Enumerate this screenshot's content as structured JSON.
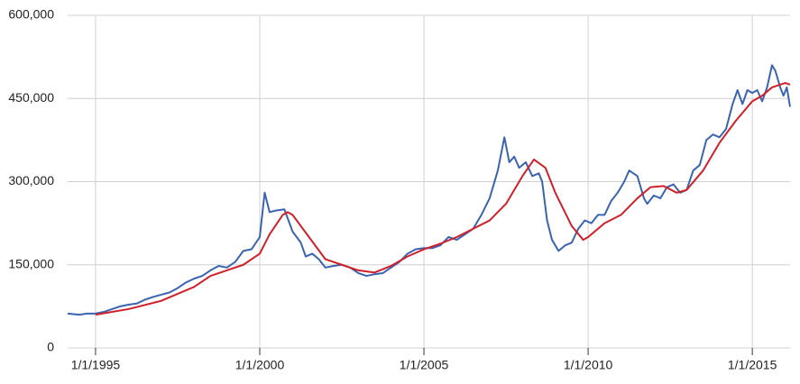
{
  "chart_data": {
    "type": "line",
    "xlim": [
      1994.15,
      2016.15
    ],
    "ylim": [
      0,
      600000
    ],
    "xticks": [
      {
        "value": 1995,
        "label": "1/1/1995"
      },
      {
        "value": 2000,
        "label": "1/1/2000"
      },
      {
        "value": 2005,
        "label": "1/1/2005"
      },
      {
        "value": 2010,
        "label": "1/1/2010"
      },
      {
        "value": 2015,
        "label": "1/1/2015"
      }
    ],
    "yticks": [
      0,
      {
        "value": 150000,
        "label": "150,000"
      },
      {
        "value": 300000,
        "label": "300,000"
      },
      {
        "value": 450000,
        "label": "450,000"
      },
      {
        "value": 600000,
        "label": "600,000"
      }
    ],
    "grid": true,
    "series": [
      {
        "color": "#3b63b0",
        "x": [
          1994.15,
          1994.5,
          1994.75,
          1995.0,
          1995.25,
          1995.5,
          1995.75,
          1996.0,
          1996.25,
          1996.5,
          1996.75,
          1997.0,
          1997.25,
          1997.5,
          1997.75,
          1998.0,
          1998.25,
          1998.5,
          1998.75,
          1999.0,
          1999.25,
          1999.5,
          1999.75,
          2000.0,
          2000.15,
          2000.3,
          2000.5,
          2000.75,
          2001.0,
          2001.25,
          2001.4,
          2001.6,
          2001.8,
          2002.0,
          2002.25,
          2002.5,
          2002.75,
          2003.0,
          2003.25,
          2003.5,
          2003.75,
          2004.0,
          2004.25,
          2004.5,
          2004.75,
          2005.0,
          2005.25,
          2005.5,
          2005.75,
          2006.0,
          2006.25,
          2006.5,
          2006.75,
          2007.0,
          2007.25,
          2007.45,
          2007.6,
          2007.75,
          2007.9,
          2008.1,
          2008.3,
          2008.5,
          2008.6,
          2008.75,
          2008.9,
          2009.1,
          2009.3,
          2009.5,
          2009.7,
          2009.9,
          2010.1,
          2010.3,
          2010.5,
          2010.7,
          2010.9,
          2011.1,
          2011.25,
          2011.5,
          2011.7,
          2011.8,
          2012.0,
          2012.2,
          2012.4,
          2012.6,
          2012.8,
          2013.0,
          2013.2,
          2013.4,
          2013.6,
          2013.8,
          2014.0,
          2014.2,
          2014.4,
          2014.55,
          2014.7,
          2014.85,
          2015.0,
          2015.15,
          2015.3,
          2015.45,
          2015.6,
          2015.7,
          2015.85,
          2015.95,
          2016.05,
          2016.15
        ],
        "values": [
          62000,
          60000,
          62000,
          62000,
          65000,
          70000,
          75000,
          78000,
          80000,
          87000,
          92000,
          96000,
          100000,
          108000,
          118000,
          125000,
          130000,
          140000,
          148000,
          145000,
          155000,
          175000,
          178000,
          200000,
          280000,
          245000,
          248000,
          250000,
          210000,
          190000,
          165000,
          170000,
          160000,
          145000,
          148000,
          150000,
          145000,
          135000,
          130000,
          133000,
          135000,
          145000,
          155000,
          170000,
          178000,
          180000,
          180000,
          185000,
          200000,
          195000,
          205000,
          215000,
          240000,
          270000,
          320000,
          380000,
          335000,
          345000,
          325000,
          335000,
          310000,
          315000,
          300000,
          230000,
          195000,
          175000,
          185000,
          190000,
          215000,
          230000,
          225000,
          240000,
          240000,
          265000,
          280000,
          300000,
          320000,
          310000,
          270000,
          260000,
          275000,
          270000,
          290000,
          295000,
          280000,
          285000,
          320000,
          330000,
          375000,
          385000,
          380000,
          395000,
          440000,
          465000,
          440000,
          465000,
          460000,
          465000,
          445000,
          470000,
          510000,
          500000,
          470000,
          455000,
          470000,
          435000
        ]
      },
      {
        "color": "#d0202a",
        "x": [
          1995.0,
          1996.0,
          1997.0,
          1998.0,
          1998.5,
          1999.0,
          1999.5,
          2000.0,
          2000.3,
          2000.7,
          2000.85,
          2001.0,
          2001.5,
          2002.0,
          2002.5,
          2003.0,
          2003.5,
          2004.0,
          2004.5,
          2005.0,
          2005.5,
          2006.0,
          2006.5,
          2007.0,
          2007.5,
          2008.0,
          2008.35,
          2008.7,
          2009.0,
          2009.5,
          2009.85,
          2010.0,
          2010.5,
          2011.0,
          2011.5,
          2011.9,
          2012.3,
          2012.7,
          2013.0,
          2013.5,
          2014.0,
          2014.5,
          2015.0,
          2015.3,
          2015.6,
          2016.0,
          2016.15
        ],
        "values": [
          60000,
          70000,
          85000,
          110000,
          130000,
          140000,
          150000,
          170000,
          205000,
          240000,
          245000,
          240000,
          200000,
          160000,
          150000,
          140000,
          136000,
          148000,
          165000,
          178000,
          188000,
          200000,
          215000,
          230000,
          260000,
          310000,
          340000,
          325000,
          280000,
          220000,
          195000,
          200000,
          225000,
          240000,
          270000,
          290000,
          292000,
          280000,
          285000,
          320000,
          370000,
          410000,
          445000,
          455000,
          470000,
          478000,
          475000
        ]
      }
    ]
  }
}
